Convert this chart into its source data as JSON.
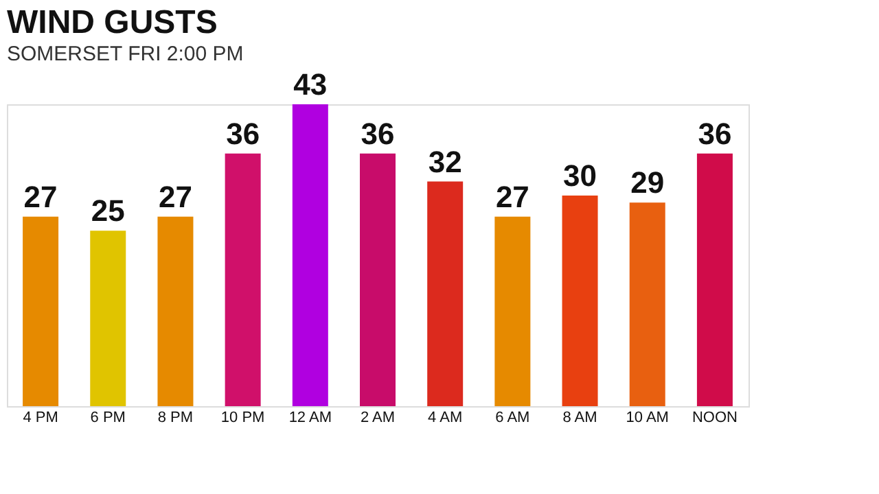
{
  "chart_data": {
    "type": "bar",
    "title": "WIND GUSTS",
    "subtitle": "SOMERSET   FRI 2:00 PM",
    "categories": [
      "4 PM",
      "6 PM",
      "8 PM",
      "10 PM",
      "12 AM",
      "2 AM",
      "4 AM",
      "6 AM",
      "8 AM",
      "10 AM",
      "NOON"
    ],
    "values": [
      27,
      25,
      27,
      36,
      43,
      36,
      32,
      27,
      30,
      29,
      36
    ],
    "colors": [
      "#e68a00",
      "#e0c400",
      "#e68a00",
      "#d0106a",
      "#b000e0",
      "#c80c6a",
      "#dc2a1e",
      "#e68a00",
      "#e84010",
      "#e86010",
      "#d00c4a"
    ],
    "data_labels": true
  }
}
